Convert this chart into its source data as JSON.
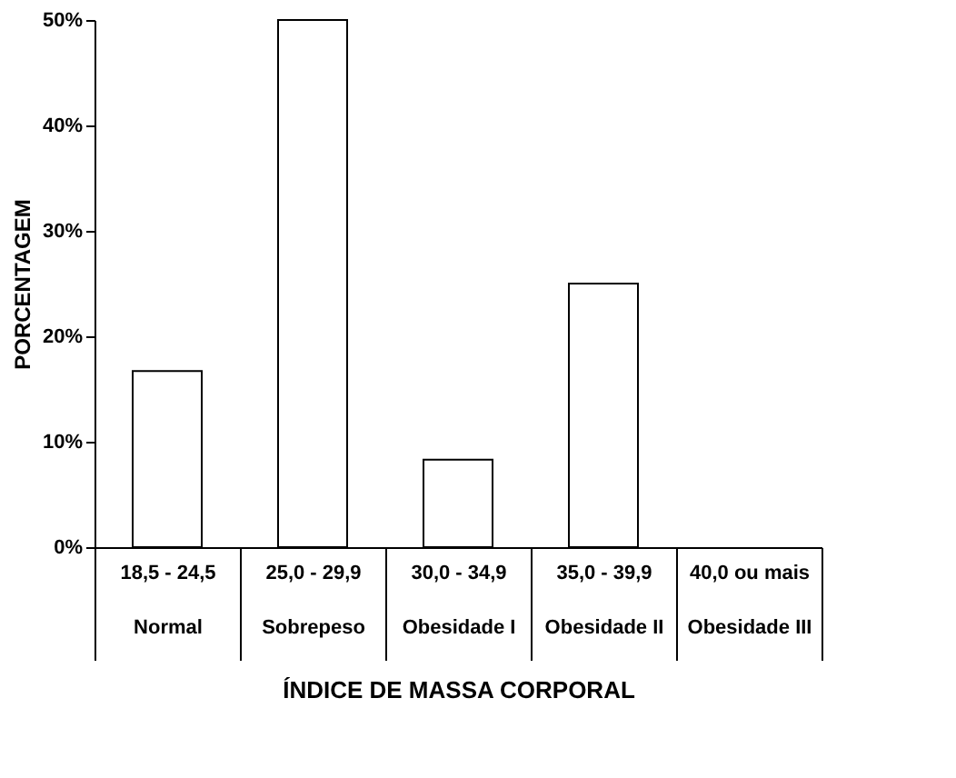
{
  "chart_data": {
    "type": "bar",
    "xlabel": "ÍNDICE DE MASSA CORPORAL",
    "ylabel": "PORCENTAGEM",
    "categories": [
      "18,5 - 24,5\nNormal",
      "25,0 - 29,9\nSobrepeso",
      "30,0 - 34,9\nObesidade I",
      "35,0 - 39,9\nObesidade II",
      "40,0 ou mais\nObesidade III"
    ],
    "values": [
      16.7,
      50,
      8.3,
      25,
      0
    ],
    "color": "#ffffff",
    "ylim": [
      0,
      50
    ],
    "yticks": [
      {
        "value": 0,
        "label": "0%"
      },
      {
        "value": 10,
        "label": "10%"
      },
      {
        "value": 20,
        "label": "20%"
      },
      {
        "value": 30,
        "label": "30%"
      },
      {
        "value": 40,
        "label": "40%"
      },
      {
        "value": 50,
        "label": "50%"
      }
    ],
    "grid": false
  }
}
